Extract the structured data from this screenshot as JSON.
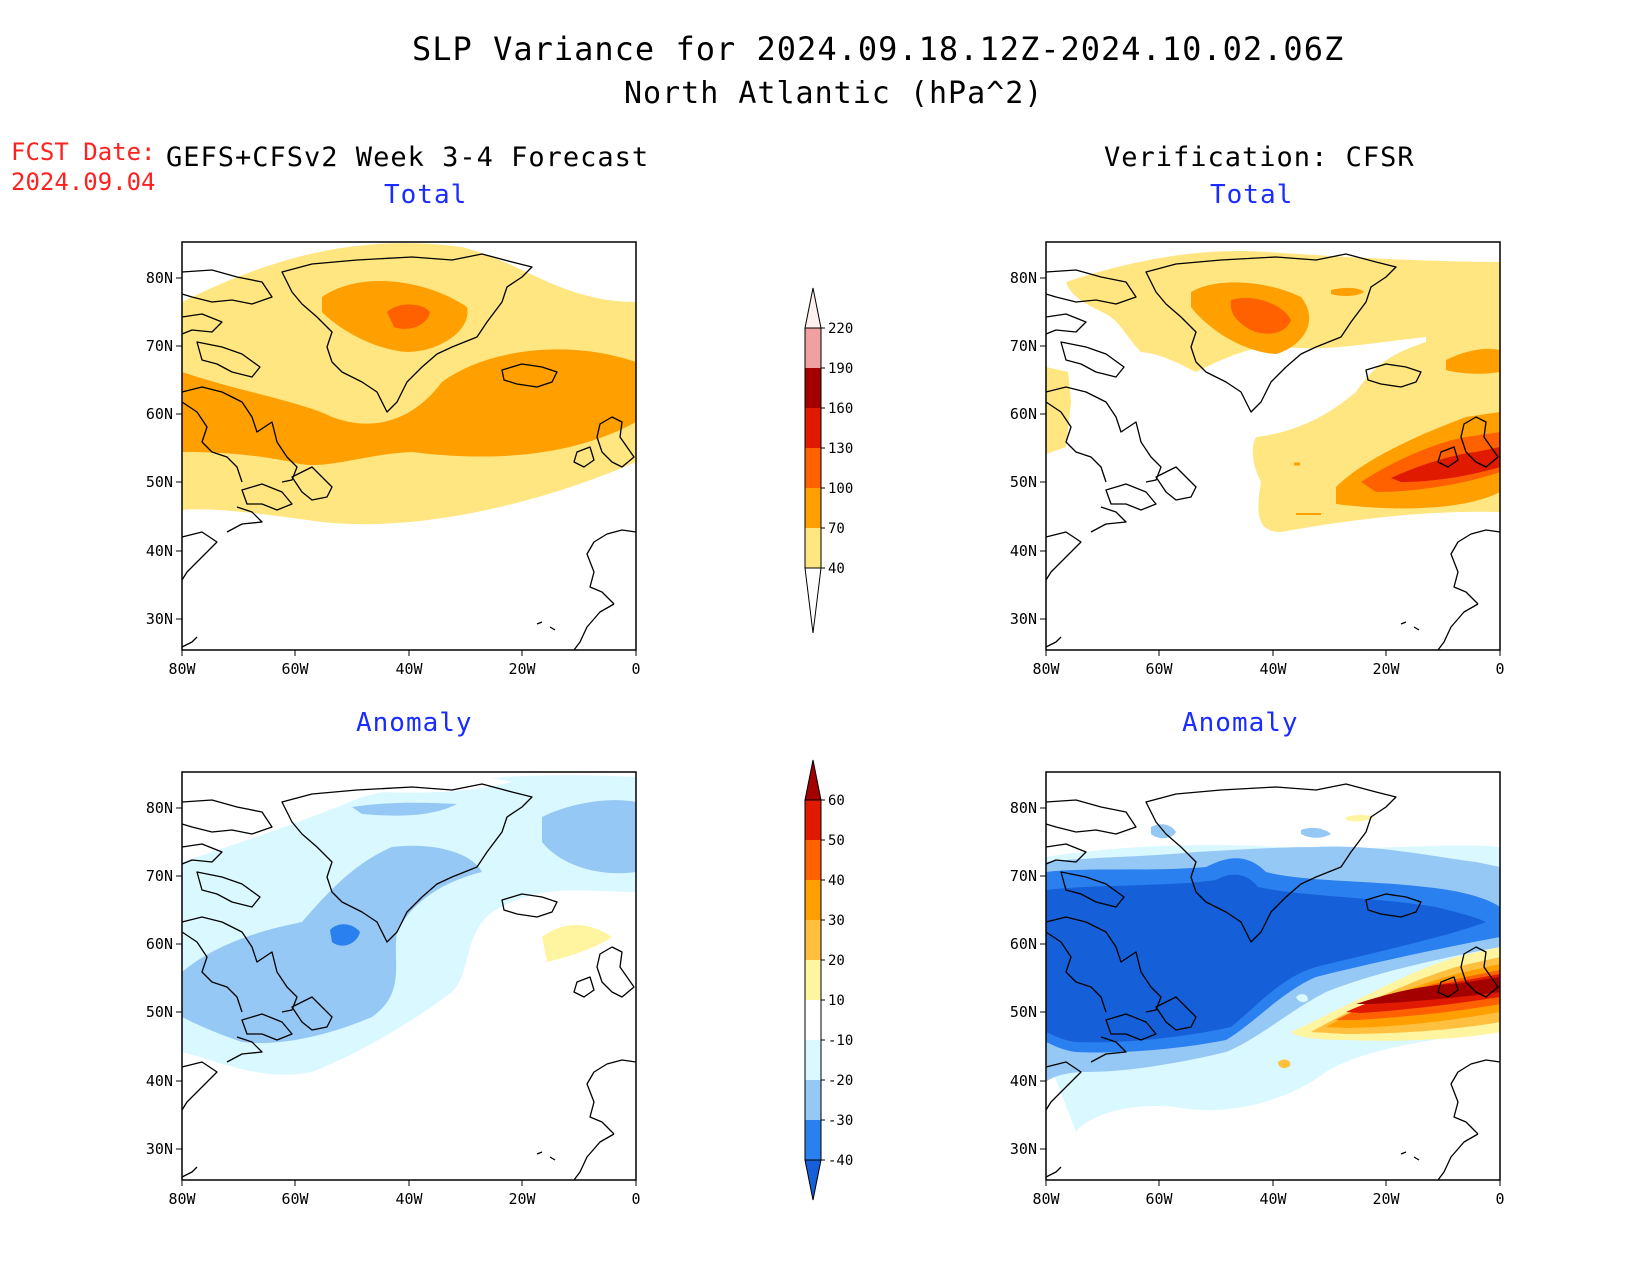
{
  "title_line1": "SLP Variance for 2024.09.18.12Z-2024.10.02.06Z",
  "title_line2": "North Atlantic (hPa^2)",
  "forecast_date_label": "FCST Date:",
  "forecast_date_value": "2024.09.04",
  "left_column_title": "GEFS+CFSv2 Week 3-4 Forecast",
  "right_column_title": "Verification: CFSR",
  "panels": {
    "fcst_total": {
      "title": "Total"
    },
    "fcst_anomaly": {
      "title": "Anomaly"
    },
    "ver_total": {
      "title": "Total"
    },
    "ver_anomaly": {
      "title": "Anomaly"
    }
  },
  "lat_labels": [
    "80N",
    "70N",
    "60N",
    "50N",
    "40N",
    "30N"
  ],
  "lon_labels": [
    "80W",
    "60W",
    "40W",
    "20W",
    "0"
  ],
  "total_colorbar": {
    "levels": [
      "40",
      "70",
      "100",
      "130",
      "160",
      "190",
      "220"
    ],
    "colors": [
      "#ffe680",
      "#ffa000",
      "#ff6000",
      "#e01a00",
      "#a50000",
      "#f0a0a0",
      "#fff0f0"
    ]
  },
  "anomaly_colorbar": {
    "levels": [
      "-40",
      "-30",
      "-20",
      "-10",
      "10",
      "20",
      "30",
      "40",
      "50",
      "60"
    ],
    "colors": [
      "#1560d8",
      "#2a80ee",
      "#96c8f5",
      "#daf8ff",
      "#ffffff",
      "#fff4a0",
      "#ffc040",
      "#ffa000",
      "#ff6000",
      "#e01a00",
      "#a50000"
    ]
  }
}
